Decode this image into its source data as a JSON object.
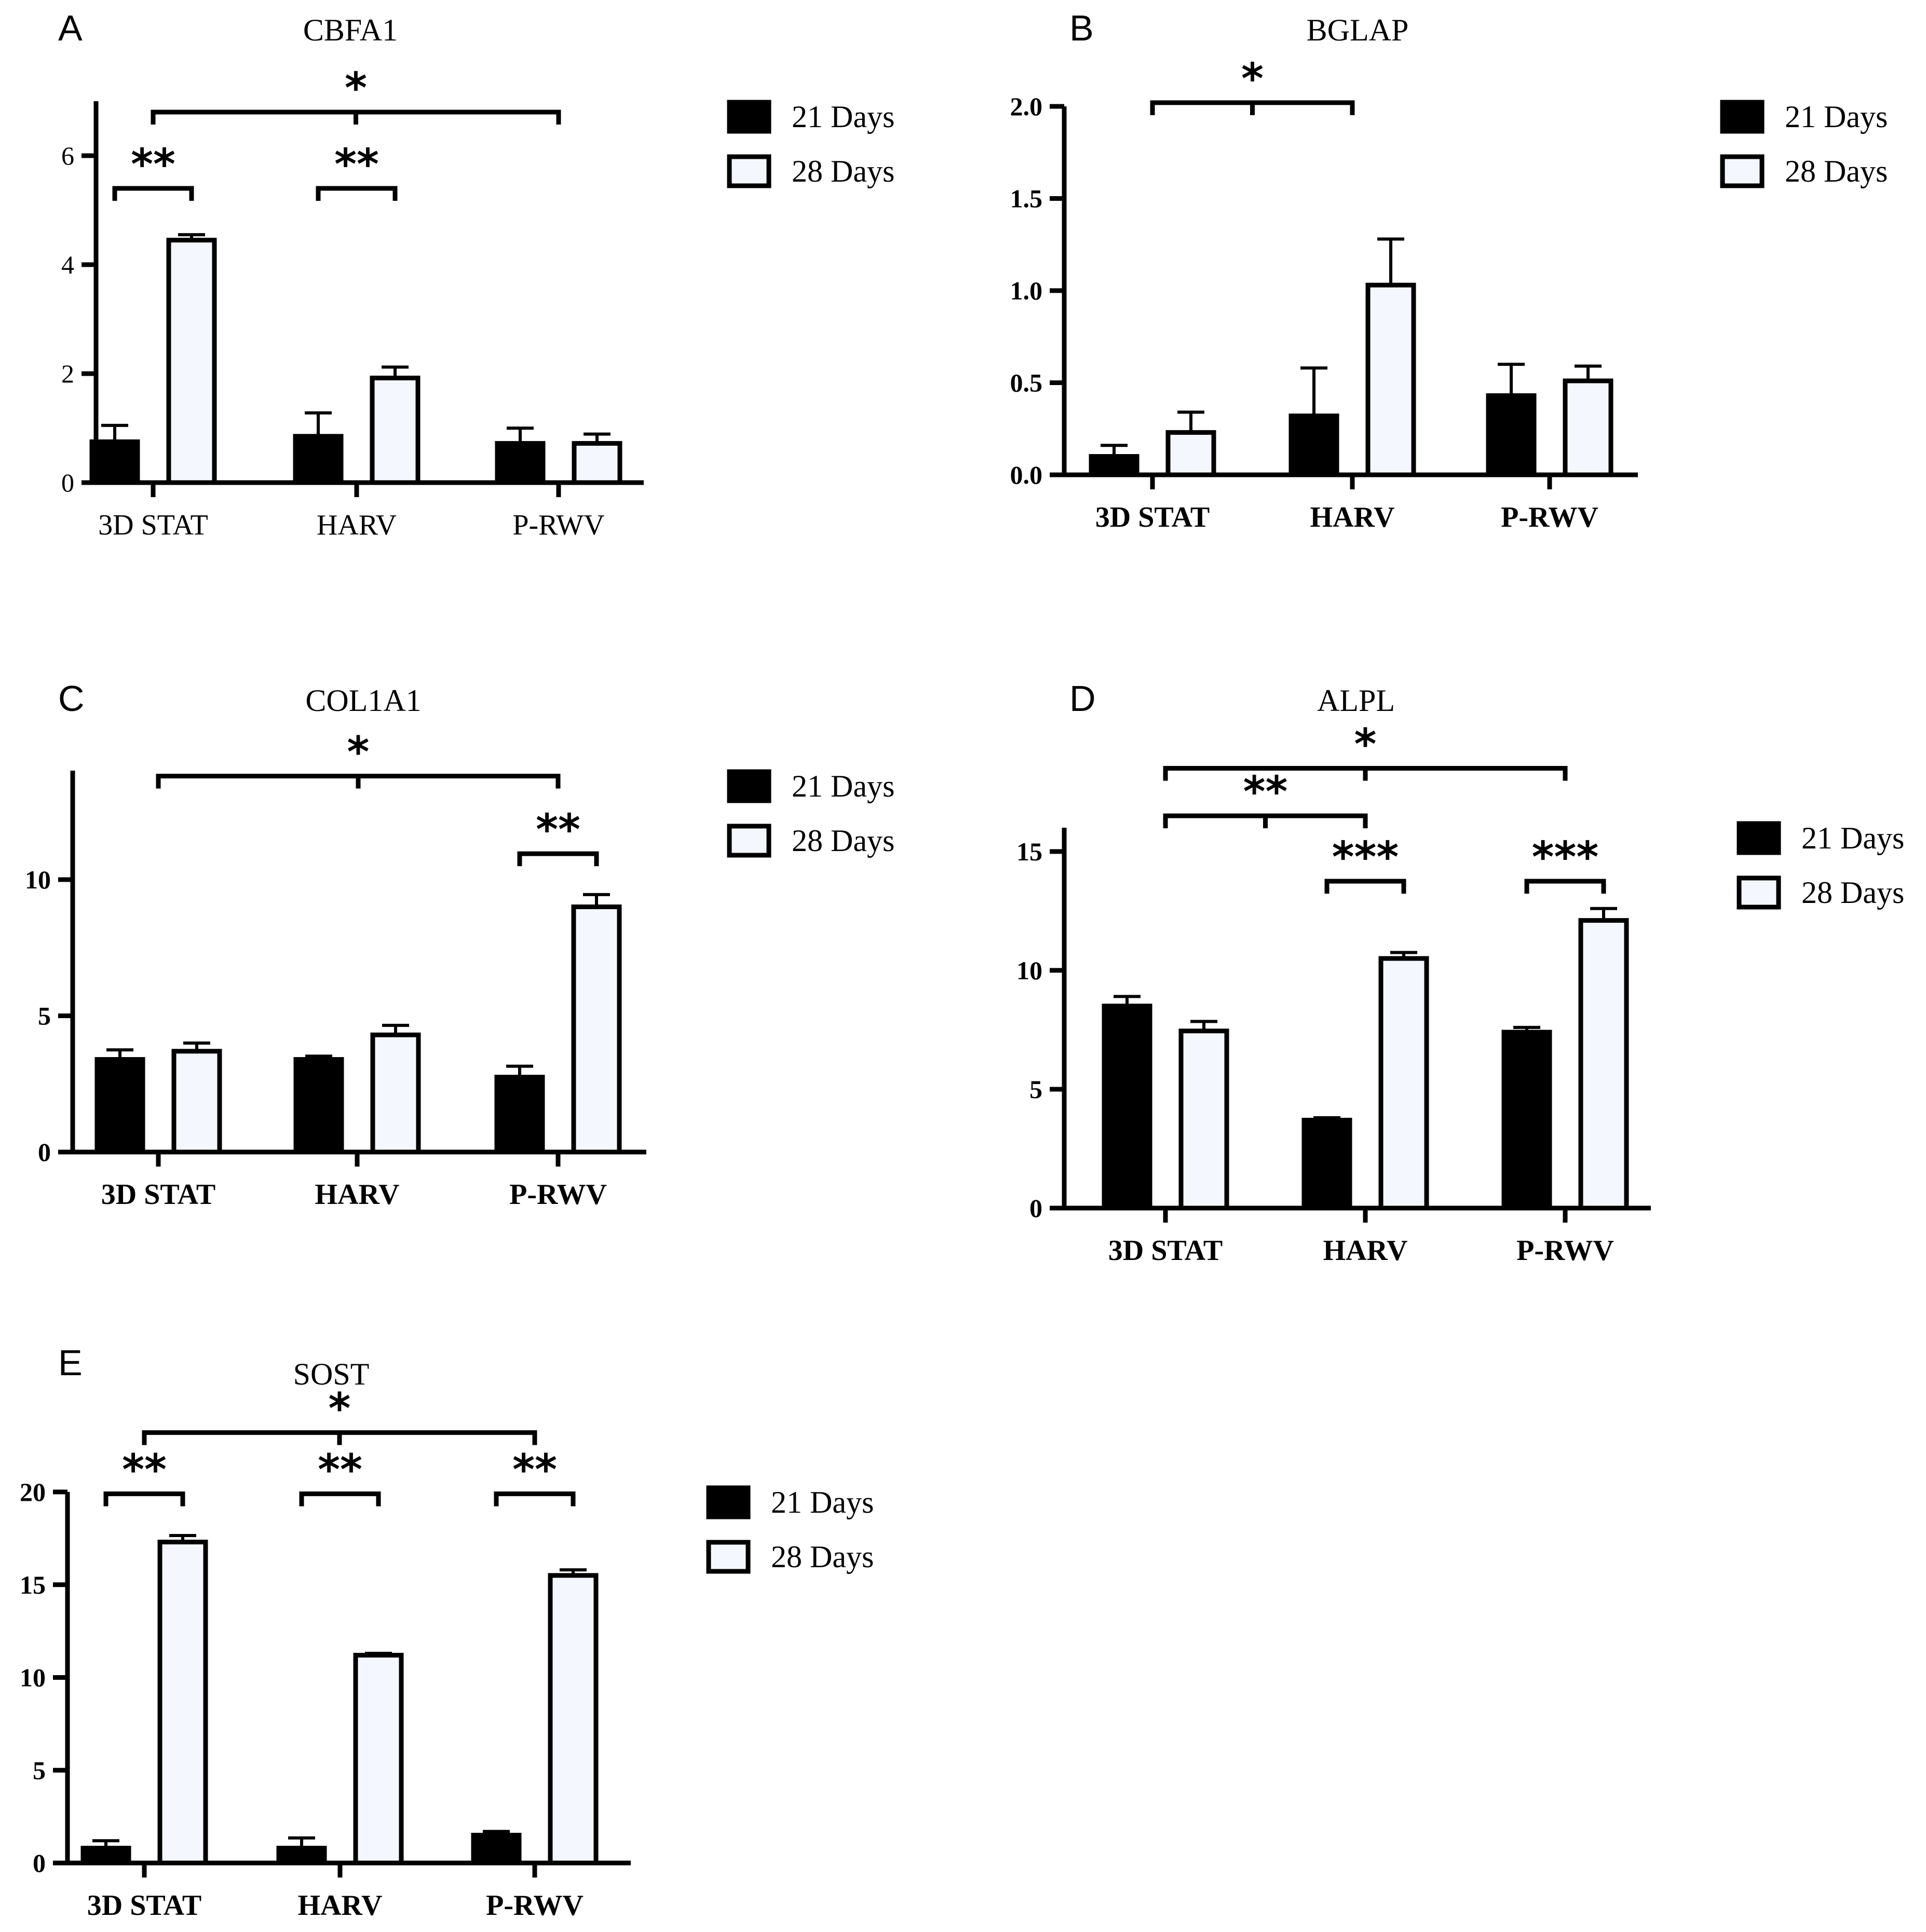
{
  "colors": {
    "series_21": "#000000",
    "series_28": "#f4f7fd",
    "stroke": "#000000"
  },
  "chart_data": [
    {
      "panel": "A",
      "title": "CBFA1",
      "type": "bar",
      "categories": [
        "3D STAT",
        "HARV",
        "P-RWV"
      ],
      "series": [
        {
          "name": "21 Days",
          "values": [
            0.75,
            0.85,
            0.72
          ],
          "errors": [
            0.3,
            0.43,
            0.28
          ]
        },
        {
          "name": "28 Days",
          "values": [
            4.45,
            1.92,
            0.72
          ],
          "errors": [
            0.1,
            0.2,
            0.17
          ]
        }
      ],
      "ylim": [
        0,
        7
      ],
      "yticks": [
        0,
        2,
        4,
        6
      ],
      "ytick_labels": [
        "0",
        "2",
        "4",
        "6"
      ],
      "bold_labels": false,
      "legend": [
        "21 Days",
        "28 Days"
      ],
      "significance": [
        {
          "label": "*",
          "from": "3D STAT",
          "to": "P-RWV",
          "value": 6.8
        },
        {
          "label": "**",
          "within": "3D STAT",
          "value": 5.4
        },
        {
          "label": "**",
          "within": "HARV",
          "value": 5.4
        }
      ]
    },
    {
      "panel": "B",
      "title": "BGLAP",
      "type": "bar",
      "categories": [
        "3D STAT",
        "HARV",
        "P-RWV"
      ],
      "series": [
        {
          "name": "21 Days",
          "values": [
            0.1,
            0.32,
            0.43
          ],
          "errors": [
            0.06,
            0.26,
            0.17
          ]
        },
        {
          "name": "28 Days",
          "values": [
            0.23,
            1.03,
            0.51
          ],
          "errors": [
            0.11,
            0.25,
            0.08
          ]
        }
      ],
      "ylim": [
        0,
        2.0
      ],
      "yticks": [
        0,
        0.5,
        1.0,
        1.5,
        2.0
      ],
      "ytick_labels": [
        "0.0",
        "0.5",
        "1.0",
        "1.5",
        "2.0"
      ],
      "bold_labels": true,
      "legend": [
        "21 Days",
        "28 Days"
      ],
      "significance": [
        {
          "label": "*",
          "from": "3D STAT",
          "to": "HARV",
          "value": 2.02
        }
      ]
    },
    {
      "panel": "C",
      "title": "COL1A1",
      "type": "bar",
      "categories": [
        "3D STAT",
        "HARV",
        "P-RWV"
      ],
      "series": [
        {
          "name": "21 Days",
          "values": [
            3.4,
            3.4,
            2.75
          ],
          "errors": [
            0.35,
            0.12,
            0.4
          ]
        },
        {
          "name": "28 Days",
          "values": [
            3.7,
            4.3,
            9.0
          ],
          "errors": [
            0.3,
            0.35,
            0.45
          ]
        }
      ],
      "ylim": [
        0,
        14
      ],
      "yticks": [
        0,
        5,
        10
      ],
      "ytick_labels": [
        "0",
        "5",
        "10"
      ],
      "bold_labels": true,
      "legend": [
        "21 Days",
        "28 Days"
      ],
      "significance": [
        {
          "label": "*",
          "from": "3D STAT",
          "to": "P-RWV",
          "value": 13.8
        },
        {
          "label": "**",
          "within": "P-RWV",
          "value": 10.95
        }
      ]
    },
    {
      "panel": "D",
      "title": "ALPL",
      "type": "bar",
      "categories": [
        "3D STAT",
        "HARV",
        "P-RWV"
      ],
      "series": [
        {
          "name": "21 Days",
          "values": [
            8.5,
            3.7,
            7.4
          ],
          "errors": [
            0.4,
            0.1,
            0.2
          ]
        },
        {
          "name": "28 Days",
          "values": [
            7.45,
            10.5,
            12.1
          ],
          "errors": [
            0.4,
            0.25,
            0.5
          ]
        }
      ],
      "ylim": [
        0,
        16
      ],
      "yticks": [
        0,
        5,
        10,
        15
      ],
      "ytick_labels": [
        "0",
        "5",
        "10",
        "15"
      ],
      "bold_labels": true,
      "legend": [
        "21 Days",
        "28 Days"
      ],
      "significance": [
        {
          "label": "*",
          "from": "3D STAT",
          "to": "P-RWV",
          "value": 18.5
        },
        {
          "label": "**",
          "from": "3D STAT",
          "to": "HARV",
          "value": 16.5
        },
        {
          "label": "***",
          "within": "HARV",
          "value": 13.75
        },
        {
          "label": "***",
          "within": "P-RWV",
          "value": 13.75
        }
      ]
    },
    {
      "panel": "E",
      "title": "SOST",
      "type": "bar",
      "categories": [
        "3D STAT",
        "HARV",
        "P-RWV"
      ],
      "series": [
        {
          "name": "21 Days",
          "values": [
            0.8,
            0.8,
            1.5
          ],
          "errors": [
            0.4,
            0.55,
            0.2
          ]
        },
        {
          "name": "28 Days",
          "values": [
            17.3,
            11.2,
            15.5
          ],
          "errors": [
            0.35,
            0.1,
            0.3
          ]
        }
      ],
      "ylim": [
        0,
        20
      ],
      "yticks": [
        0,
        5,
        10,
        15,
        20
      ],
      "ytick_labels": [
        "0",
        "5",
        "10",
        "15",
        "20"
      ],
      "bold_labels": true,
      "legend": [
        "21 Days",
        "28 Days"
      ],
      "significance": [
        {
          "label": "*",
          "from": "3D STAT",
          "to": "P-RWV",
          "value": 23.2
        },
        {
          "label": "**",
          "within": "3D STAT",
          "value": 19.9
        },
        {
          "label": "**",
          "within": "HARV",
          "value": 19.9
        },
        {
          "label": "**",
          "within": "P-RWV",
          "value": 19.9
        }
      ]
    }
  ]
}
